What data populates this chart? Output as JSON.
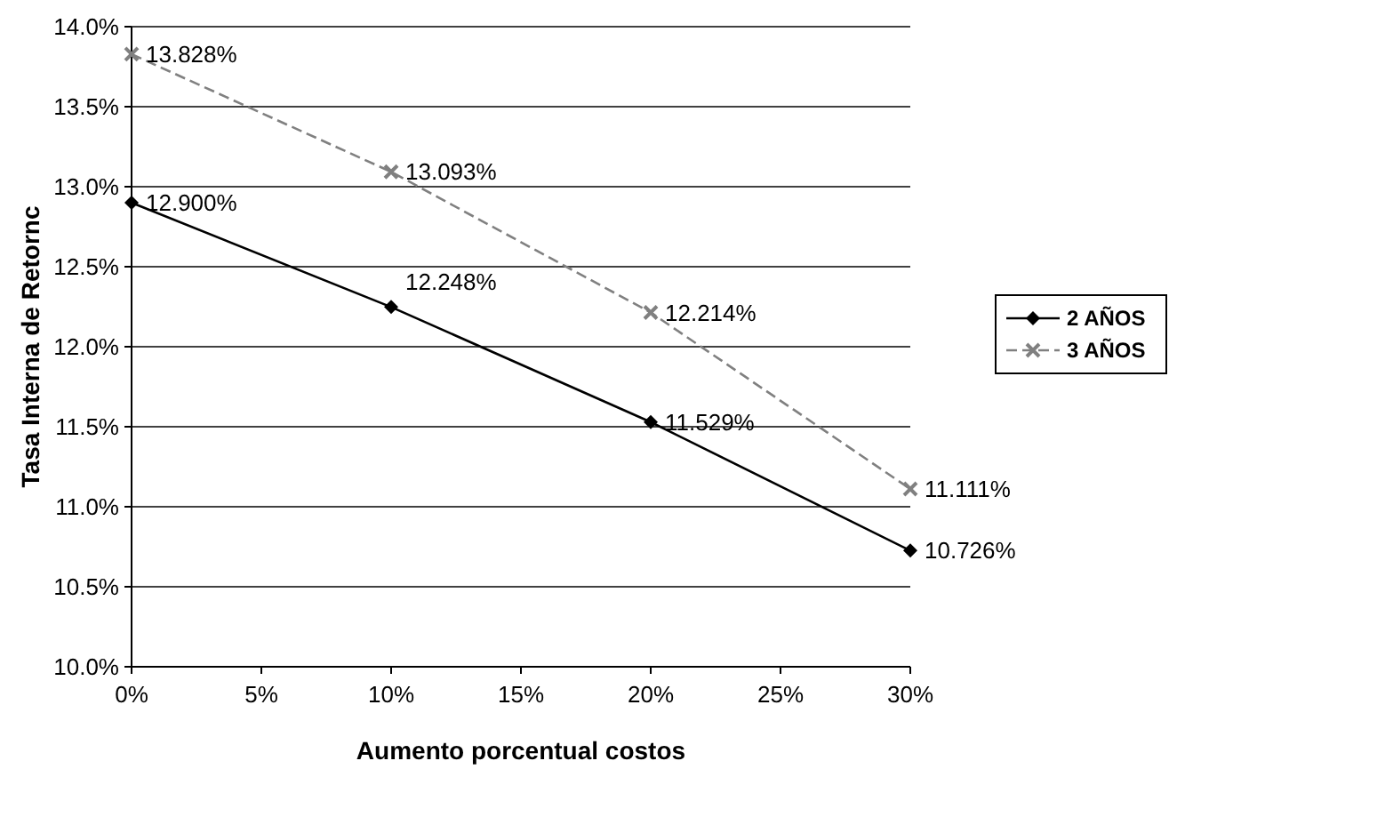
{
  "chart_data": {
    "type": "line",
    "xlabel": "Aumento porcentual costos",
    "ylabel": "Tasa Interna de Retornc",
    "x": [
      0,
      10,
      20,
      30
    ],
    "xlim": [
      0,
      30
    ],
    "xticks": [
      {
        "value": 0,
        "label": "0%"
      },
      {
        "value": 5,
        "label": "5%"
      },
      {
        "value": 10,
        "label": "10%"
      },
      {
        "value": 15,
        "label": "15%"
      },
      {
        "value": 20,
        "label": "20%"
      },
      {
        "value": 25,
        "label": "25%"
      },
      {
        "value": 30,
        "label": "30%"
      }
    ],
    "ylim": [
      10,
      14
    ],
    "yticks": [
      {
        "value": 10,
        "label": "10.0%"
      },
      {
        "value": 10.5,
        "label": "10.5%"
      },
      {
        "value": 11,
        "label": "11.0%"
      },
      {
        "value": 11.5,
        "label": "11.5%"
      },
      {
        "value": 12,
        "label": "12.0%"
      },
      {
        "value": 12.5,
        "label": "12.5%"
      },
      {
        "value": 13,
        "label": "13.0%"
      },
      {
        "value": 13.5,
        "label": "13.5%"
      },
      {
        "value": 14,
        "label": "14.0%"
      }
    ],
    "grid": "y",
    "legend": "right",
    "series": [
      {
        "name": "2 AÑOS",
        "color": "#000000",
        "values": [
          12.9,
          12.248,
          11.529,
          10.726
        ],
        "marker": "diamond",
        "line_style": "solid",
        "value_labels": [
          "12.900%",
          "12.248%",
          "11.529%",
          "10.726%"
        ]
      },
      {
        "name": "3 AÑOS",
        "color": "#808080",
        "values": [
          13.828,
          13.093,
          12.214,
          11.111
        ],
        "marker": "cross",
        "line_style": "dashed",
        "value_labels": [
          "13.828%",
          "13.093%",
          "12.214%",
          "11.111%"
        ]
      }
    ]
  }
}
